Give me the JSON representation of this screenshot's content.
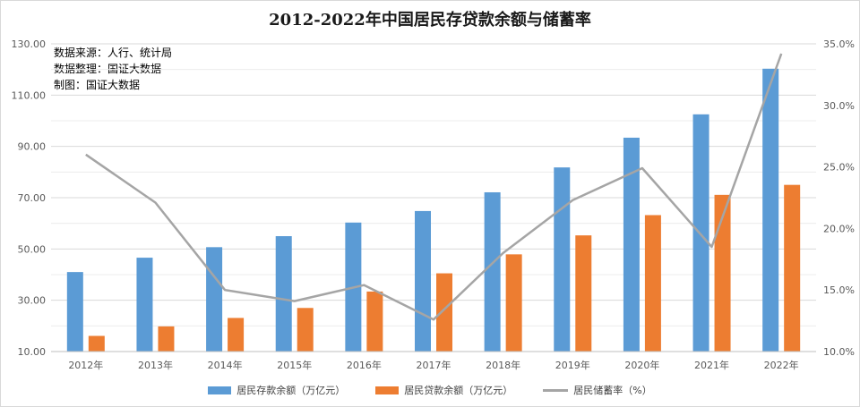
{
  "chart_data": {
    "type": "bar",
    "title": "2012-2022年中国居民存贷款余额与储蓄率",
    "notes": [
      "数据来源：人行、统计局",
      "数据整理：国证大数据",
      "制图：国证大数据"
    ],
    "categories": [
      "2012年",
      "2013年",
      "2014年",
      "2015年",
      "2016年",
      "2017年",
      "2018年",
      "2019年",
      "2020年",
      "2021年",
      "2022年"
    ],
    "series": [
      {
        "name": "居民存款余额（万亿元）",
        "type": "bar",
        "axis": "left",
        "color": "#5b9bd5",
        "values": [
          41.0,
          46.6,
          50.7,
          55.0,
          60.3,
          64.8,
          72.1,
          81.8,
          93.4,
          102.5,
          120.3
        ]
      },
      {
        "name": "居民贷款余额（万亿元）",
        "type": "bar",
        "axis": "left",
        "color": "#ed7d31",
        "values": [
          16.1,
          19.8,
          23.1,
          27.0,
          33.4,
          40.5,
          47.9,
          55.3,
          63.2,
          71.1,
          75.0
        ]
      },
      {
        "name": "居民储蓄率（%）",
        "type": "line",
        "axis": "right",
        "color": "#a5a5a5",
        "values": [
          26.0,
          22.1,
          15.0,
          14.1,
          15.4,
          12.6,
          18.0,
          22.3,
          24.9,
          18.5,
          34.2
        ]
      }
    ],
    "y_left": {
      "ticks": [
        "10.00",
        "30.00",
        "50.00",
        "70.00",
        "90.00",
        "110.00",
        "130.00"
      ],
      "min": 10,
      "max": 130
    },
    "y_right": {
      "ticks": [
        "10.0%",
        "15.0%",
        "20.0%",
        "25.0%",
        "30.0%",
        "35.0%"
      ],
      "min": 10,
      "max": 35
    },
    "grid": true,
    "legend_position": "bottom"
  }
}
